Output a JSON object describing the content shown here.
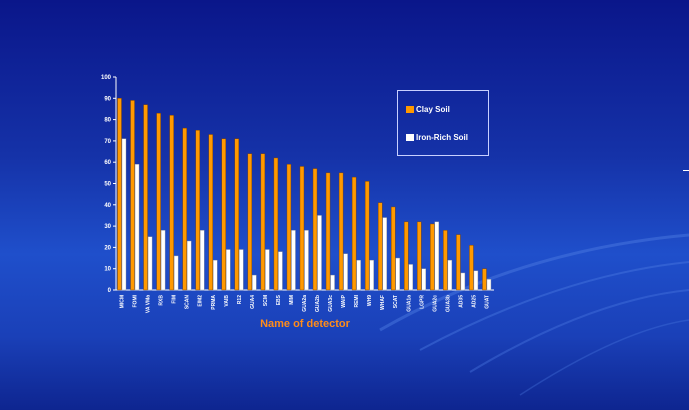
{
  "chart_data": {
    "type": "bar",
    "title": "",
    "xlabel": "Name of detector",
    "ylabel": "",
    "ylim": [
      0,
      100
    ],
    "yticks": [
      0,
      10,
      20,
      30,
      40,
      50,
      60,
      70,
      80,
      90,
      100
    ],
    "grid": false,
    "legend_position": "top-right",
    "categories": [
      "MICM",
      "FOMI",
      "VA VMa",
      "RXB",
      "FIM",
      "SCAN",
      "EIM2",
      "PRMA",
      "VAIB",
      "R12",
      "GUA4",
      "SCM",
      "EBS",
      "MIM",
      "GUA2a",
      "GUA2b",
      "GUA3c",
      "WAIP",
      "REMI",
      "WH9",
      "WHAF",
      "SCAT",
      "GUA1a",
      "LGPR",
      "GUA2c",
      "GUA3b",
      "AD35",
      "AD25",
      "GUAT"
    ],
    "series": [
      {
        "name": "Clay Soil",
        "color": "#ff9900",
        "values": [
          90,
          89,
          87,
          83,
          82,
          76,
          75,
          73,
          71,
          71,
          64,
          64,
          62,
          59,
          58,
          57,
          55,
          55,
          53,
          51,
          41,
          39,
          32,
          32,
          31,
          28,
          26,
          21,
          10
        ]
      },
      {
        "name": "Iron-Rich Soil",
        "color": "#ffffff",
        "values": [
          71,
          59,
          25,
          28,
          16,
          23,
          28,
          14,
          19,
          19,
          7,
          19,
          18,
          28,
          28,
          35,
          7,
          17,
          14,
          14,
          34,
          15,
          12,
          10,
          32,
          14,
          8,
          9,
          5
        ]
      }
    ]
  }
}
